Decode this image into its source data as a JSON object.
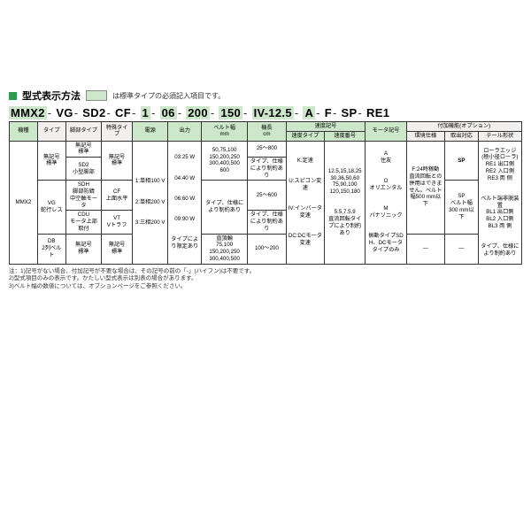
{
  "title": "型式表示方法",
  "inline_note": "は標準タイプの必須記入項目です。",
  "model": {
    "p1": "MMX2",
    "p2": "VG",
    "p3": "SD2",
    "p4": "CF",
    "p5": "1",
    "p6": "06",
    "p7": "200",
    "p8": "150",
    "p9": "IV-12.5",
    "p10": "A",
    "p11": "F",
    "p12": "SP",
    "p13": "RE1"
  },
  "headers": {
    "h1": "機種",
    "h2": "タイプ",
    "h3": "脚部タイプ",
    "h4": "特殊タイプ",
    "h5": "電源",
    "h6": "出力",
    "h7": "ベルト幅",
    "h7u": "mm",
    "h8": "機長",
    "h8u": "cm",
    "h9": "速度記号",
    "h9a": "速度タイプ",
    "h9b": "速度番号",
    "h10": "モータ記号",
    "h11": "付加機能(オプション)",
    "h11a": "環境仕様",
    "h11b": "取出対応",
    "h11c": "テール形状"
  },
  "r1": {
    "kishu": "MMX2",
    "type1": "無記号\n標準",
    "leg1": "無記号\n標準",
    "leg2": "SD2\n小型脚部",
    "sp1": "無記号\n標準",
    "sp2": "CF\n上面水平",
    "pw": "1:単相100 V\n\n2:単相200 V\n\n3:三相200 V",
    "out": "03:25 W\n\n04:40 W\n\n06:60 W\n\n09:90 W\n\nタイプにより限定あり",
    "bw1": "50,75,100\n150,200,250\n300,400,500\n600",
    "bw2": "タイプ、仕様により制約あり",
    "ml1": "25～800",
    "ml2": "タイプ、仕様により制約あり",
    "ml3": "25～600",
    "ml4": "タイプ、仕様により制約あり",
    "st": "K:定速\n\nU:スピコン変速\n\nIV:インバータ変速\n\nDC:DCモータ変速",
    "sn": "12.5,15,18,25\n30,36,50,60\n75,90,100\n120,150,180\n\n5.5,7.5,9\n直流回転タイプにより制約あり",
    "mt": "A\n住友\n\nO\nオリエンタル\n\nM\nパナソニック\n\n振動タイプSDH、DCモータタイプのみ",
    "env": "F:24時稼動\n直流回転との併用はできません。ベルト幅500 mm以下",
    "take1": "SP",
    "take2": "SP\nベルト幅\n300 mm以下",
    "tail": "ローラエッジ\n(極小径ローラ)\nRE1 出口側\nRE2 入口側\nRE3 両 側\n\nベルト端非脱装置\nBL1 出口側\nBL2 入口側\nBL3 両 側\n\nタイプ、仕様により制約あり"
  },
  "r2": {
    "type2": "VG\n蛇行レス",
    "leg3": "SDH\n脚部防錆\n中空軸モータ",
    "leg4": "CDU\nモータ上部取付",
    "sp3": "VT\nVトラフ"
  },
  "r3": {
    "type3": "DB\n2列ベルト",
    "leg5": "無記号\n標準",
    "sp4": "無記号\n標準",
    "bw3": "直頂輪\n75,100\n150,200,250\n300,400,500",
    "ml5": "100～200",
    "dash": "—"
  },
  "footnotes": {
    "l1": "注：1)記号がない場合、付加記号が不要な場合は、その記号の前の「-」(ハイフン)は不要です。",
    "l2": "2)型式項目のみの表示です。かたしい型式表示は別表の場合があります。",
    "l3": "3)ベルト幅の数値については、オプションページをご参照ください。"
  },
  "colors": {
    "green_accent": "#2e9b4f",
    "green_highlight": "#cce7c9",
    "header_bg": "#f2f0ee",
    "border": "#333333",
    "text": "#333333",
    "background": "#ffffff"
  }
}
